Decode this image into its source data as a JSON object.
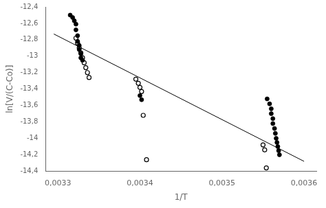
{
  "chart_data": {
    "type": "scatter",
    "xlabel": "1/T",
    "ylabel": "ln[V/(C-Co)]",
    "xlim": [
      0.003285,
      0.003615
    ],
    "ylim": [
      -14.4,
      -12.4
    ],
    "xticks": [
      {
        "value": 0.0033,
        "label": "0,0033"
      },
      {
        "value": 0.0034,
        "label": "0,0034"
      },
      {
        "value": 0.0035,
        "label": "0,0035"
      },
      {
        "value": 0.0036,
        "label": "0,0036"
      }
    ],
    "yticks": [
      {
        "value": -14.4,
        "label": "-14,4"
      },
      {
        "value": -14.2,
        "label": "-14,2"
      },
      -14,
      {
        "value": -13.8,
        "label": "-13,8"
      },
      {
        "value": -13.6,
        "label": "-13,6"
      },
      {
        "value": -13.4,
        "label": "-13,4"
      },
      {
        "value": -13.2,
        "label": "-13,2"
      },
      -13,
      {
        "value": -12.8,
        "label": "-12,8"
      },
      {
        "value": -12.6,
        "label": "-12,6"
      },
      {
        "value": -12.4,
        "label": "-12,4"
      }
    ],
    "grid": false,
    "series": [
      {
        "type": "line",
        "color": "#000000",
        "x": [
          0.003295,
          0.0036
        ],
        "values": [
          -12.73,
          -14.28
        ]
      },
      {
        "type": "scatter",
        "color": "#000000",
        "marker": "circle",
        "x": [
          0.003315,
          0.003318,
          0.00332,
          0.003322,
          0.003322,
          0.003324,
          0.003324,
          0.003326,
          0.003326,
          0.003328,
          0.003328,
          0.00333,
          0.0034,
          0.003402,
          0.003555,
          0.003558,
          0.00356,
          0.00356,
          0.003562,
          0.003562,
          0.003564,
          0.003565,
          0.003566,
          0.003567,
          0.003568,
          0.003569,
          0.00357
        ],
        "values": [
          -12.5,
          -12.53,
          -12.57,
          -12.61,
          -12.68,
          -12.75,
          -12.82,
          -12.87,
          -12.92,
          -12.97,
          -13.02,
          -13.05,
          -13.48,
          -13.53,
          -13.52,
          -13.58,
          -13.64,
          -13.7,
          -13.76,
          -13.82,
          -13.88,
          -13.94,
          -14.0,
          -14.05,
          -14.1,
          -14.15,
          -14.2
        ]
      },
      {
        "type": "scatter",
        "color": "#000000",
        "marker": "open_circle",
        "x": [
          0.003322,
          0.003324,
          0.003326,
          0.003328,
          0.00333,
          0.003332,
          0.003334,
          0.003336,
          0.003338,
          0.003395,
          0.003398,
          0.0034,
          0.003402,
          0.003404,
          0.003408,
          0.00355,
          0.003552,
          0.003554
        ],
        "values": [
          -12.78,
          -12.84,
          -12.9,
          -12.96,
          -13.02,
          -13.08,
          -13.14,
          -13.2,
          -13.26,
          -13.28,
          -13.33,
          -13.38,
          -13.43,
          -13.72,
          -14.26,
          -14.08,
          -14.14,
          -14.36
        ]
      }
    ]
  }
}
